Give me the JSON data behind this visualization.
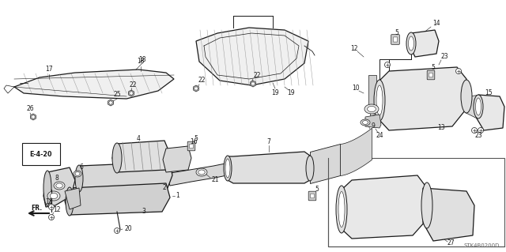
{
  "background_color": "#ffffff",
  "diagram_code": "STK4B0200D",
  "line_color": "#1a1a1a",
  "figsize": [
    6.4,
    3.19
  ],
  "dpi": 100
}
